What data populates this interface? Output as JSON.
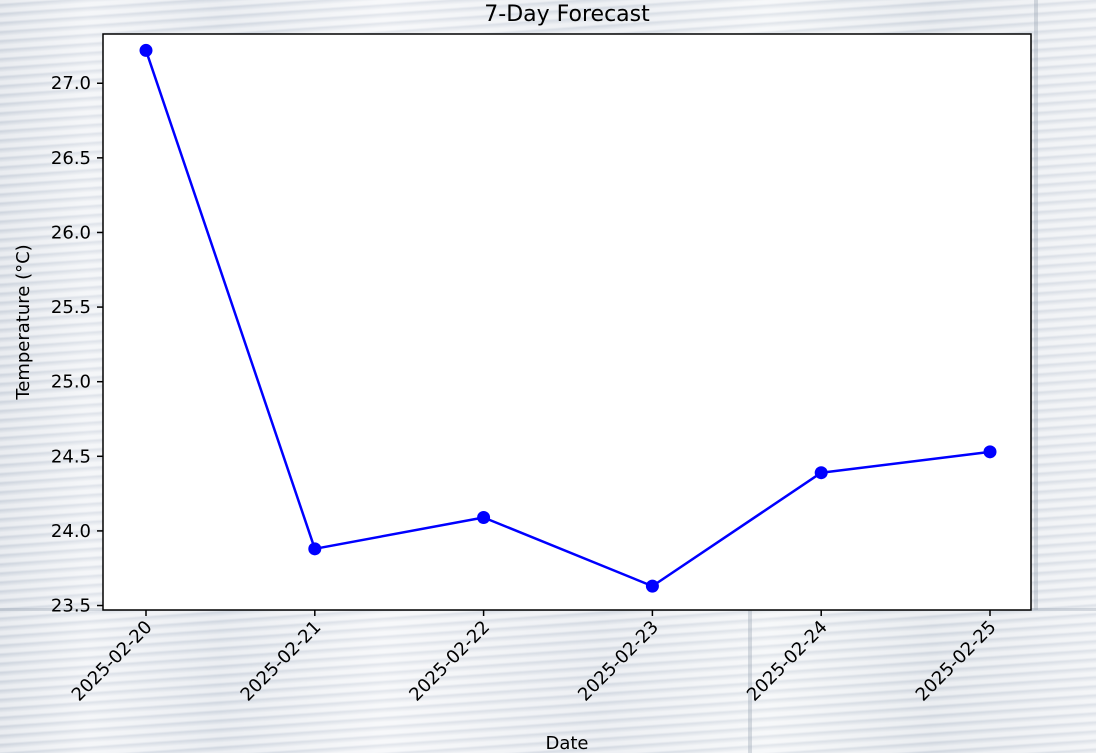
{
  "chart_data": {
    "type": "line",
    "title": "7-Day Forecast",
    "xlabel": "Date",
    "ylabel": "Temperature (°C)",
    "categories": [
      "2025-02-20",
      "2025-02-21",
      "2025-02-22",
      "2025-02-23",
      "2025-02-24",
      "2025-02-25"
    ],
    "series": [
      {
        "values": [
          27.22,
          23.88,
          24.09,
          23.63,
          24.39,
          24.53
        ],
        "color": "#0000ff",
        "marker": "circle"
      }
    ],
    "ylim": [
      23.47,
      27.33
    ],
    "yticks": [
      23.5,
      24.0,
      24.5,
      25.0,
      25.5,
      26.0,
      26.5,
      27.0
    ],
    "ytick_labels": [
      "23.5",
      "24.0",
      "24.5",
      "25.0",
      "25.5",
      "26.0",
      "26.5",
      "27.0"
    ],
    "grid": false,
    "x_tick_rotation_deg": 45
  }
}
